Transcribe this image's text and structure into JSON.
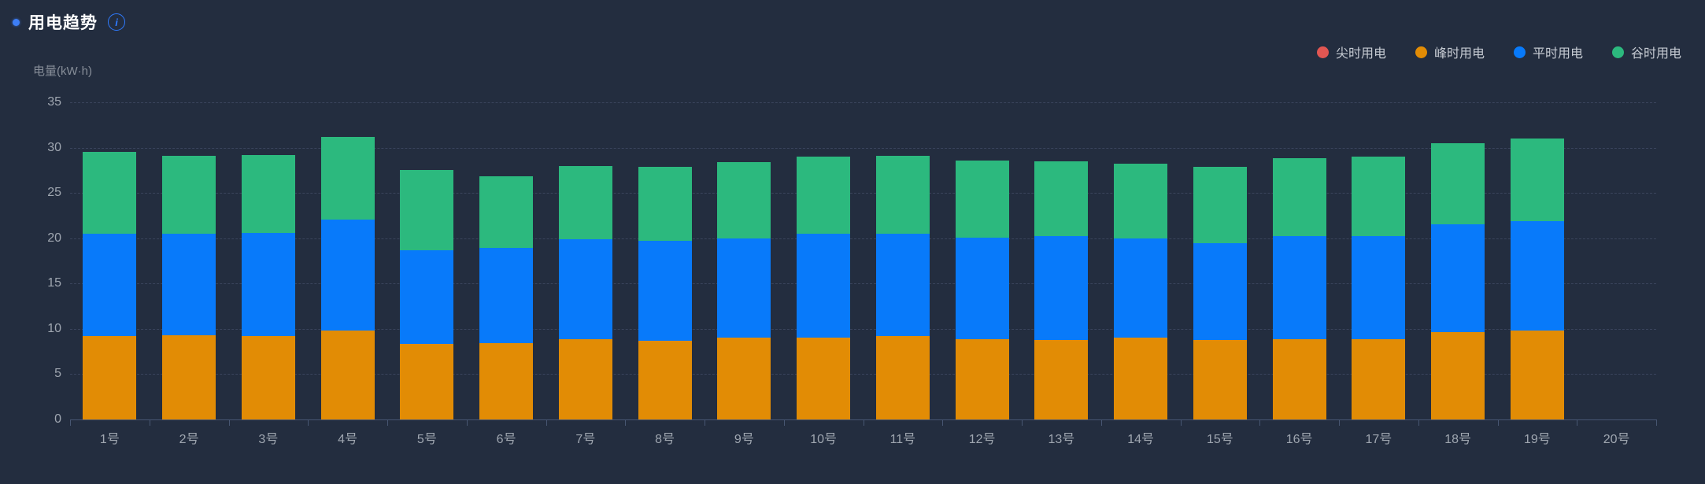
{
  "header": {
    "title": "用电趋势",
    "info_icon_glyph": "i"
  },
  "colors": {
    "background": "#232D3F",
    "title_bullet": "#3D7EF6",
    "info_icon": "#2F7BFF",
    "gridline": "#3A445C",
    "axis_line": "#475672",
    "tick_text": "#9FA6B0",
    "axis_name_text": "#878E99",
    "legend_text": "#C5CAD2",
    "series_sharp_red": "#E25652",
    "series_peak_orange": "#E28C05",
    "series_flat_blue": "#087AFA",
    "series_valley_green": "#2CB97E"
  },
  "chart_data": {
    "type": "bar",
    "stacked": true,
    "title": "用电趋势",
    "ylabel": "电量(kW·h)",
    "xlabel": "",
    "ylim": [
      0,
      35
    ],
    "ytick_interval": 5,
    "ytick_labels": [
      "0",
      "5",
      "10",
      "15",
      "20",
      "25",
      "30",
      "35"
    ],
    "grid": "dashed-horizontal",
    "legend_position": "top-right",
    "categories": [
      "1号",
      "2号",
      "3号",
      "4号",
      "5号",
      "6号",
      "7号",
      "8号",
      "9号",
      "10号",
      "11号",
      "12号",
      "13号",
      "14号",
      "15号",
      "16号",
      "17号",
      "18号",
      "19号",
      "20号"
    ],
    "series": [
      {
        "name": "尖时用电",
        "color": "#E25652",
        "values": [
          0,
          0,
          0,
          0,
          0,
          0,
          0,
          0,
          0,
          0,
          0,
          0,
          0,
          0,
          0,
          0,
          0,
          0,
          0,
          0
        ]
      },
      {
        "name": "峰时用电",
        "color": "#E28C05",
        "values": [
          9.2,
          9.3,
          9.2,
          9.8,
          8.3,
          8.4,
          8.9,
          8.7,
          9.0,
          9.0,
          9.2,
          8.9,
          8.8,
          9.0,
          8.8,
          8.9,
          8.9,
          9.6,
          9.8,
          0
        ]
      },
      {
        "name": "平时用电",
        "color": "#087AFA",
        "values": [
          11.3,
          11.2,
          11.4,
          12.3,
          10.4,
          10.5,
          11.0,
          11.0,
          11.0,
          11.5,
          11.3,
          11.2,
          11.4,
          11.0,
          10.7,
          11.3,
          11.3,
          11.9,
          12.1,
          0
        ]
      },
      {
        "name": "谷时用电",
        "color": "#2CB97E",
        "values": [
          9.0,
          8.6,
          8.6,
          9.1,
          8.8,
          7.9,
          8.1,
          8.2,
          8.4,
          8.5,
          8.6,
          8.5,
          8.3,
          8.2,
          8.4,
          8.6,
          8.8,
          9.0,
          9.1,
          0
        ]
      }
    ]
  }
}
